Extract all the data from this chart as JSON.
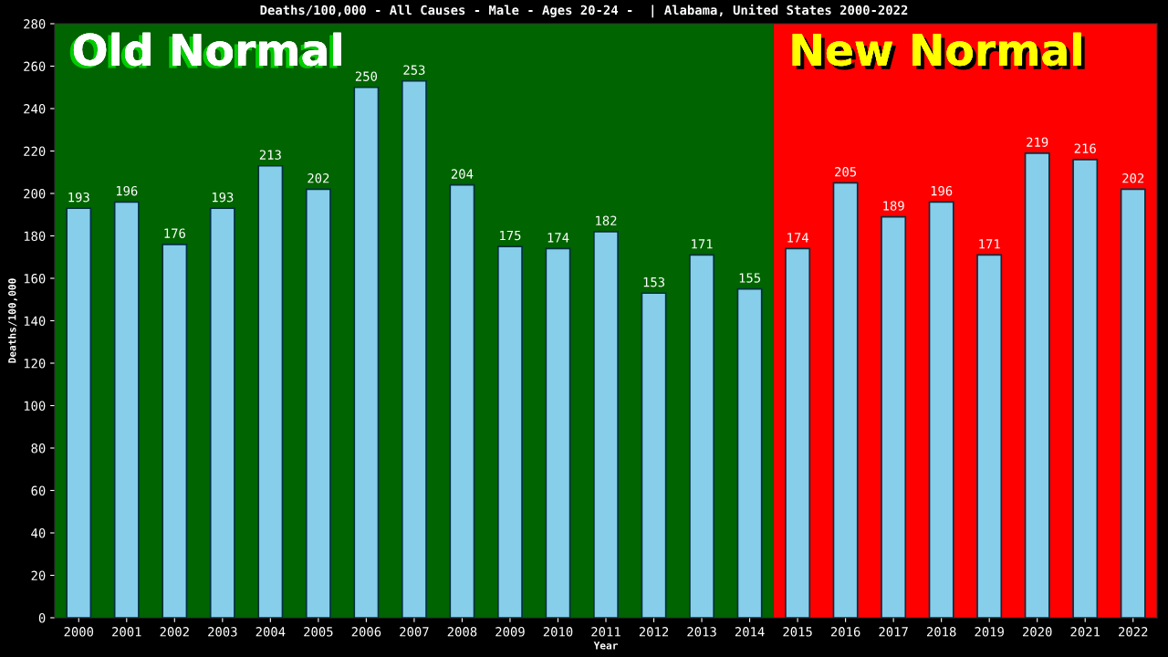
{
  "chart_data": {
    "type": "bar",
    "title": "Deaths/100,000 - All Causes - Male - Ages 20-24 -  | Alabama, United States 2000-2022",
    "xlabel": "Year",
    "ylabel": "Deaths/100,000",
    "categories": [
      "2000",
      "2001",
      "2002",
      "2003",
      "2004",
      "2005",
      "2006",
      "2007",
      "2008",
      "2009",
      "2010",
      "2011",
      "2012",
      "2013",
      "2014",
      "2015",
      "2016",
      "2017",
      "2018",
      "2019",
      "2020",
      "2021",
      "2022"
    ],
    "values": [
      193,
      196,
      176,
      193,
      213,
      202,
      250,
      253,
      204,
      175,
      174,
      182,
      153,
      171,
      155,
      174,
      205,
      189,
      196,
      171,
      219,
      216,
      202
    ],
    "color": "#87ceeb",
    "data_labels": true,
    "ylim": [
      0,
      280
    ],
    "yticks": [
      0,
      20,
      40,
      60,
      80,
      100,
      120,
      140,
      160,
      180,
      200,
      220,
      240,
      260,
      280
    ],
    "grid": false,
    "bands": [
      {
        "axis": "x",
        "from": "2000",
        "to": "2014",
        "label": "Old Normal",
        "color": "#006400"
      },
      {
        "axis": "x",
        "from": "2015",
        "to": "2022",
        "label": "New Normal",
        "color": "#ff0000"
      }
    ]
  }
}
